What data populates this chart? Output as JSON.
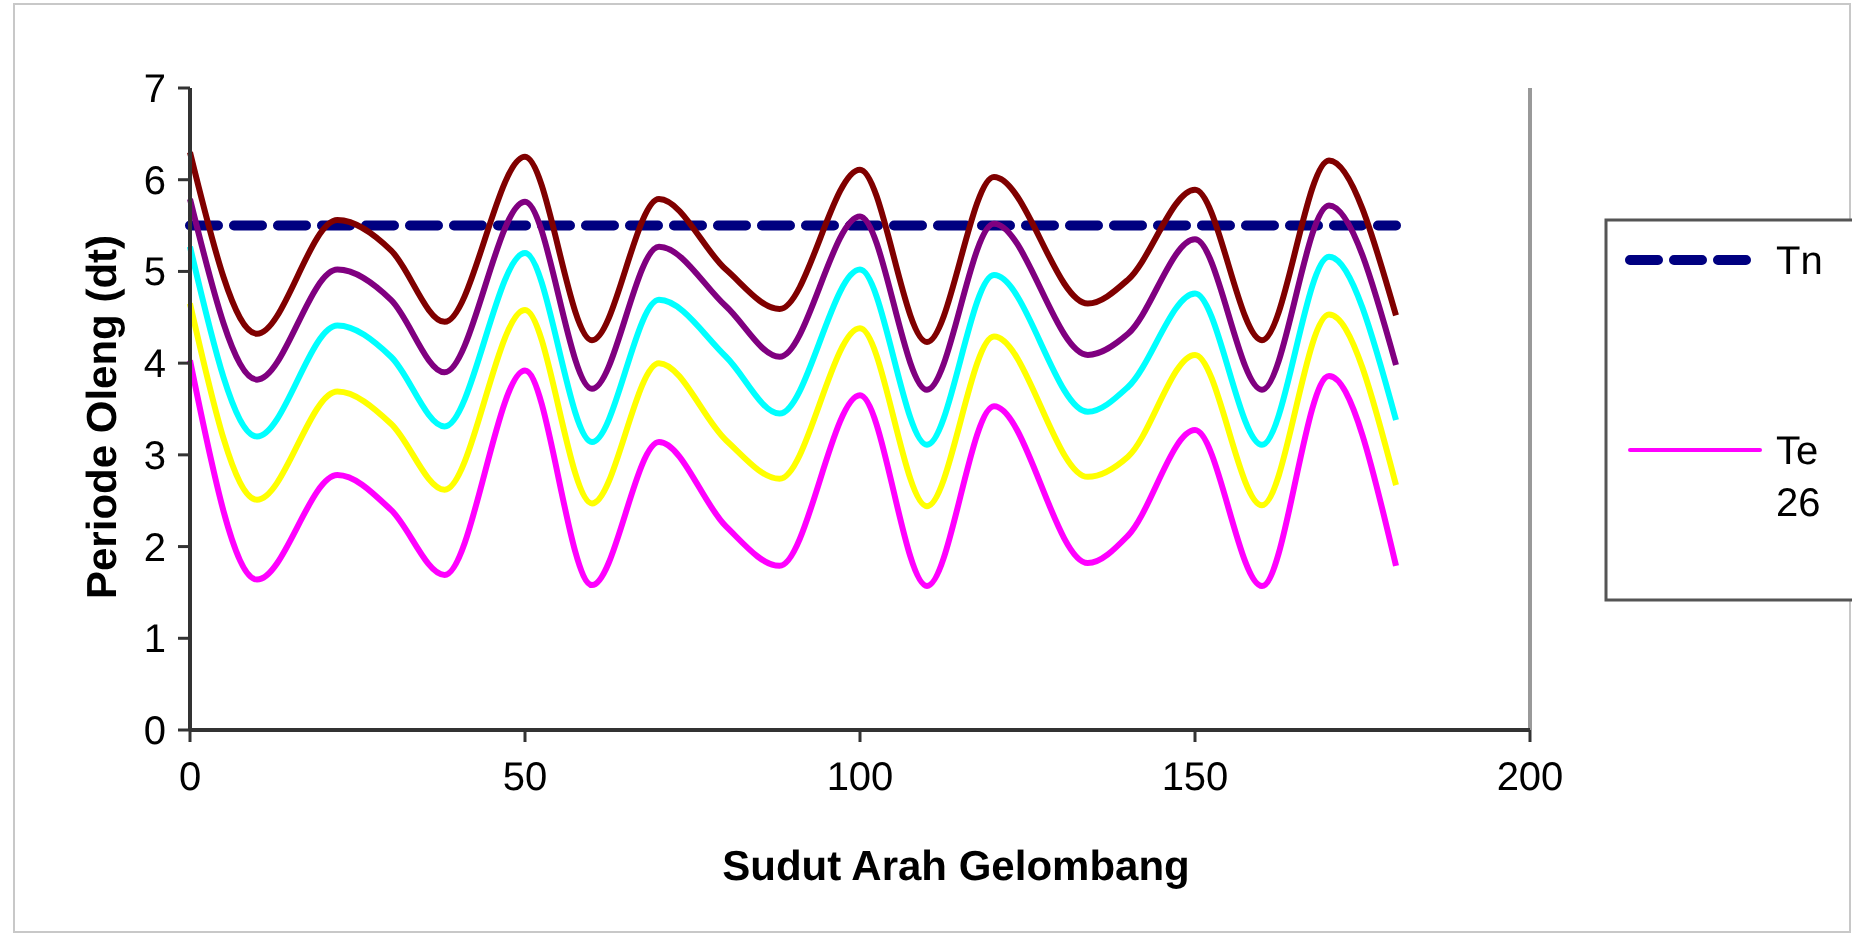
{
  "chart_data": {
    "type": "line",
    "xlabel": "Sudut Arah Gelombang",
    "ylabel": "Periode Oleng (dt)",
    "x": [
      0,
      10,
      22,
      30,
      38,
      50,
      60,
      70,
      80,
      88,
      100,
      110,
      120,
      134,
      140,
      150,
      160,
      170,
      180
    ],
    "xlim": [
      0,
      200
    ],
    "xticks": [
      0,
      50,
      100,
      150,
      200
    ],
    "ylim": [
      0,
      7
    ],
    "yticks": [
      0,
      1,
      2,
      3,
      4,
      5,
      6,
      7
    ],
    "grid": false,
    "legend": "right",
    "marker": "none",
    "series": [
      {
        "name": "Tn",
        "color": "#000080",
        "line_style": "dashed",
        "x": [
          0,
          180
        ],
        "values": [
          5.5,
          5.5
        ]
      },
      {
        "color": "#800000",
        "values": [
          6.3,
          4.32,
          5.56,
          5.23,
          4.45,
          6.25,
          4.25,
          5.79,
          5.02,
          4.59,
          6.11,
          4.23,
          6.03,
          4.65,
          4.91,
          5.89,
          4.25,
          6.21,
          4.52
        ]
      },
      {
        "color": "#800080",
        "values": [
          5.79,
          3.82,
          5.02,
          4.69,
          3.9,
          5.76,
          3.72,
          5.27,
          4.62,
          4.07,
          5.6,
          3.71,
          5.52,
          4.09,
          4.32,
          5.35,
          3.71,
          5.72,
          3.98
        ]
      },
      {
        "color": "#00ffff",
        "values": [
          5.27,
          3.2,
          4.41,
          4.07,
          3.31,
          5.2,
          3.14,
          4.69,
          4.07,
          3.45,
          5.02,
          3.11,
          4.96,
          3.47,
          3.74,
          4.76,
          3.11,
          5.16,
          3.38
        ]
      },
      {
        "color": "#ffff00",
        "values": [
          4.65,
          2.51,
          3.69,
          3.34,
          2.62,
          4.58,
          2.47,
          4.0,
          3.16,
          2.74,
          4.38,
          2.44,
          4.29,
          2.76,
          2.98,
          4.09,
          2.45,
          4.53,
          2.67
        ]
      },
      {
        "name": "Te 26",
        "color": "#ff00ff",
        "line_style": "solid",
        "values": [
          4.03,
          1.64,
          2.78,
          2.4,
          1.69,
          3.92,
          1.58,
          3.14,
          2.22,
          1.79,
          3.65,
          1.57,
          3.53,
          1.82,
          2.12,
          3.27,
          1.57,
          3.86,
          1.79
        ]
      }
    ]
  }
}
